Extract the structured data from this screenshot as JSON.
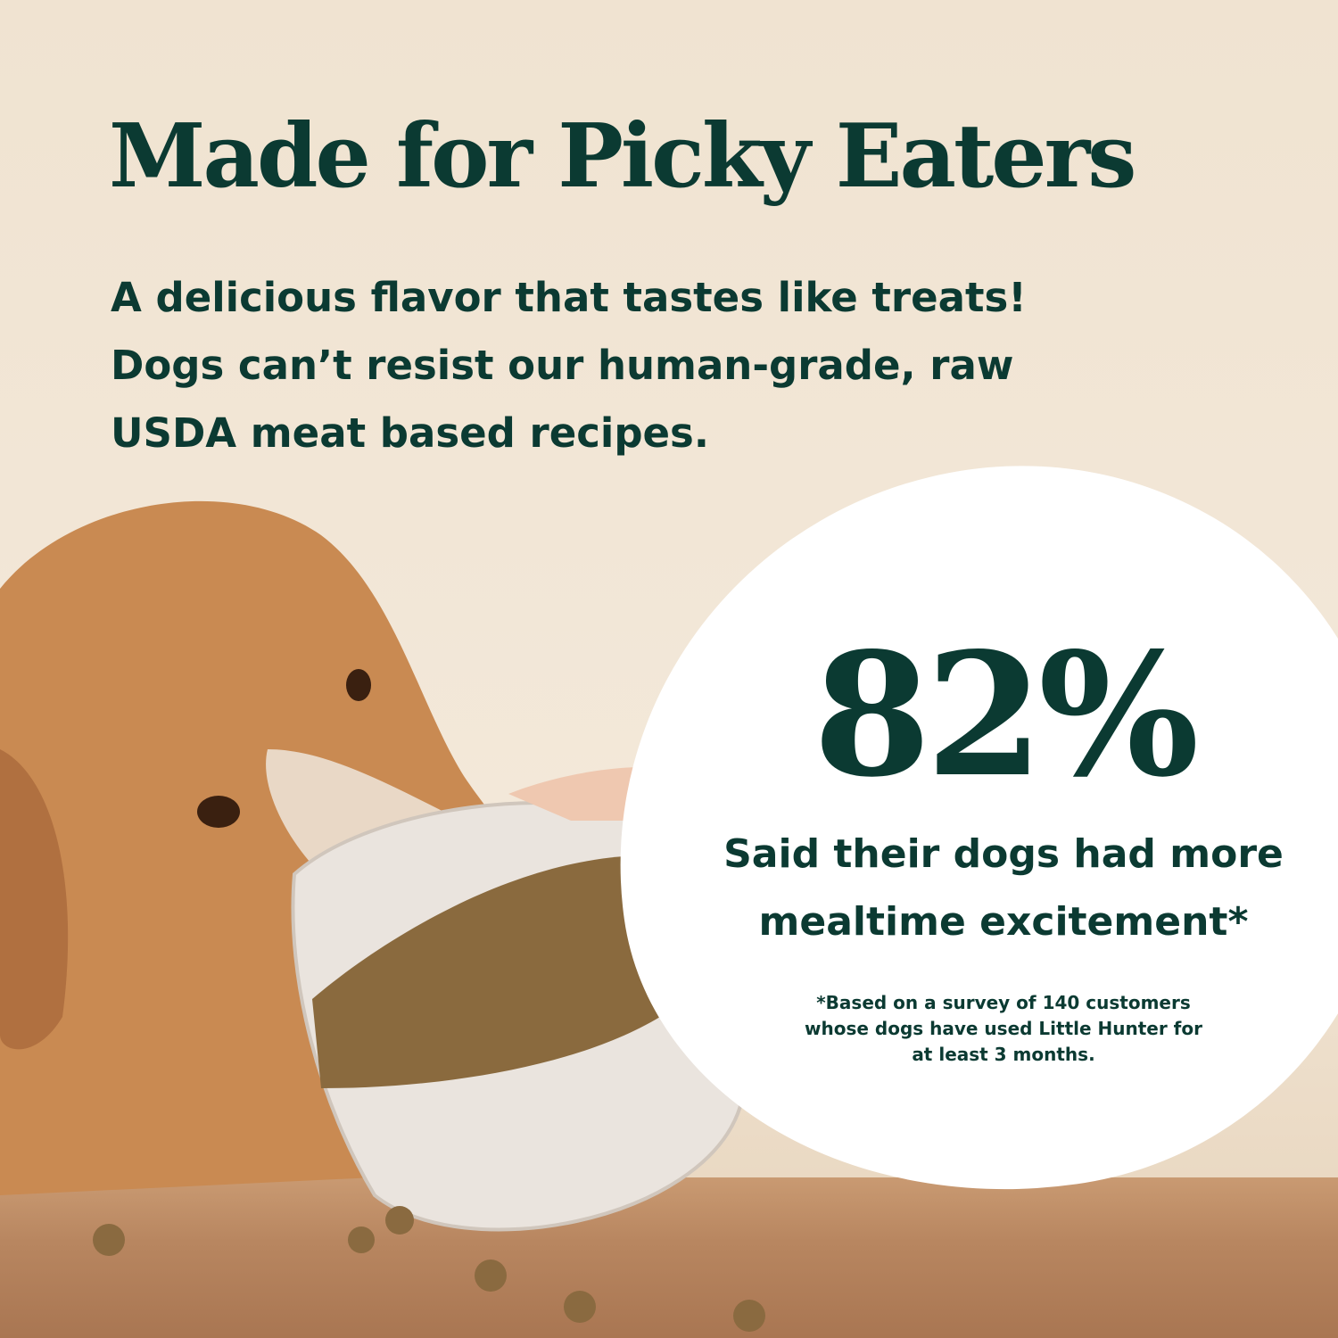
{
  "colors": {
    "text": "#0b3a32",
    "background": "#f1e5d4",
    "badge": "#ffffff"
  },
  "headline": "Made for Picky Eaters",
  "subtext": [
    "A delicious flavor that tastes like treats!",
    "Dogs can’t resist our human-grade, raw",
    "USDA meat based recipes."
  ],
  "stat": {
    "value": "82%",
    "caption": [
      "Said their dogs had more",
      "mealtime excitement*"
    ],
    "footnote": [
      "*Based on a survey of 140 customers",
      "whose dogs have used Little Hunter for",
      "at least 3 months."
    ]
  },
  "image": {
    "subject": "dog-eating-from-bowl"
  }
}
